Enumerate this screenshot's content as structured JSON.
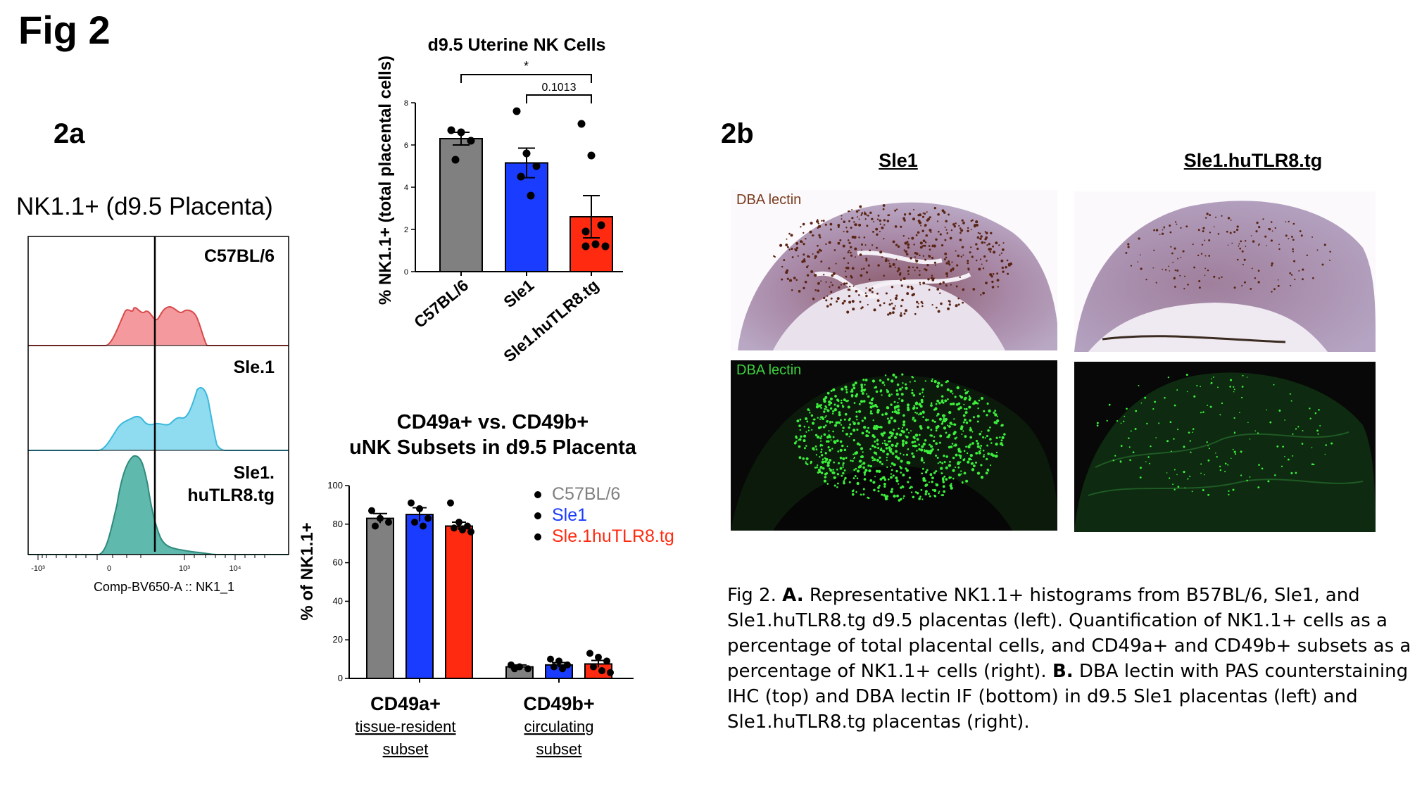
{
  "figure": {
    "title": "Fig 2"
  },
  "panel_a": {
    "label": "2a",
    "histogram": {
      "title": "NK1.1+ (d9.5 Placenta)",
      "xlabel": "Comp-BV650-A :: NK1_1",
      "xticks": [
        "-10³",
        "0",
        "10³",
        "10⁴"
      ],
      "tracks": [
        {
          "name": "C57BL/6",
          "color": "#f4999e",
          "line": "#d84a4a"
        },
        {
          "name": "Sle.1",
          "color": "#8fdcf0",
          "line": "#3ab8dc"
        },
        {
          "name_line1": "Sle1.",
          "name_line2": "huTLR8.tg",
          "color": "#5fb9ac",
          "line": "#2e8a7c"
        }
      ]
    }
  },
  "panel_b": {
    "label": "2b",
    "col_left": "Sle1",
    "col_right": "Sle1.huTLR8.tg",
    "ihc_label": "DBA lectin",
    "if_label": "DBA lectin",
    "ihc_label_color": "#7a3b1e",
    "if_label_color": "#3cd23c"
  },
  "chart_data": [
    {
      "type": "bar",
      "title": "d9.5 Uterine NK Cells",
      "ylabel": "% NK1.1+ (total placental cells)",
      "categories": [
        "C57BL/6",
        "Sle1",
        "Sle1.huTLR8.tg"
      ],
      "colors": [
        "#808080",
        "#1a3cff",
        "#ff2a10"
      ],
      "values": [
        6.3,
        5.15,
        2.6
      ],
      "errors": [
        0.3,
        0.7,
        1.0
      ],
      "points": [
        [
          6.7,
          6.6,
          6.2,
          5.3
        ],
        [
          7.6,
          5.6,
          5.0,
          4.5,
          3.6
        ],
        [
          7.0,
          5.5,
          2.2,
          1.9,
          1.3,
          1.2,
          1.2
        ]
      ],
      "ylim": [
        0,
        8
      ],
      "yticks": [
        "0",
        "2",
        "4",
        "6",
        "8"
      ],
      "annotations": [
        {
          "from": 0,
          "to": 2,
          "text": "*"
        },
        {
          "from": 1,
          "to": 2,
          "text": "0.1013"
        }
      ]
    },
    {
      "type": "bar",
      "title_line1": "CD49a+ vs. CD49b+",
      "title_line2": "uNK Subsets in d9.5 Placenta",
      "ylabel": "% of NK1.1+",
      "ylim": [
        0,
        100
      ],
      "yticks": [
        "0",
        "20",
        "40",
        "60",
        "80",
        "100"
      ],
      "groups": [
        {
          "label": "CD49a+",
          "sub1": "tissue-resident",
          "sub2": "subset"
        },
        {
          "label": "CD49b+",
          "sub1": "circulating",
          "sub2": "subset"
        }
      ],
      "series": [
        {
          "name": "C57BL/6",
          "color": "#808080",
          "values": [
            83,
            6
          ],
          "errors": [
            2.5,
            1
          ],
          "points": [
            [
              87,
              83,
              81,
              79
            ],
            [
              7,
              6,
              5,
              5
            ]
          ]
        },
        {
          "name": "Sle1",
          "color": "#1a3cff",
          "values": [
            85,
            7
          ],
          "errors": [
            3.5,
            1.2
          ],
          "points": [
            [
              91,
              88,
              83,
              81,
              79
            ],
            [
              10,
              9,
              7,
              6,
              5
            ]
          ]
        },
        {
          "name": "Sle.1huTLR8.tg",
          "color": "#ff2a10",
          "values": [
            79,
            7.5
          ],
          "errors": [
            2,
            1.8
          ],
          "points": [
            [
              91,
              81,
              79,
              78,
              77,
              76
            ],
            [
              13,
              11,
              9,
              6,
              4,
              3
            ]
          ]
        }
      ],
      "legend_placement": "top-right"
    }
  ],
  "caption": {
    "lead": "Fig 2. ",
    "a_label": "A.",
    "a_text": " Representative NK1.1+ histograms from B57BL/6, Sle1, and Sle1.huTLR8.tg d9.5 placentas (left). Quantification of NK1.1+ cells as a percentage of total placental cells, and CD49a+ and CD49b+ subsets as a percentage of NK1.1+ cells (right). ",
    "b_label": "B.",
    "b_text": " DBA lectin with PAS counterstaining IHC (top) and DBA lectin IF (bottom) in d9.5 Sle1 placentas (left) and Sle1.huTLR8.tg placentas (right)."
  }
}
